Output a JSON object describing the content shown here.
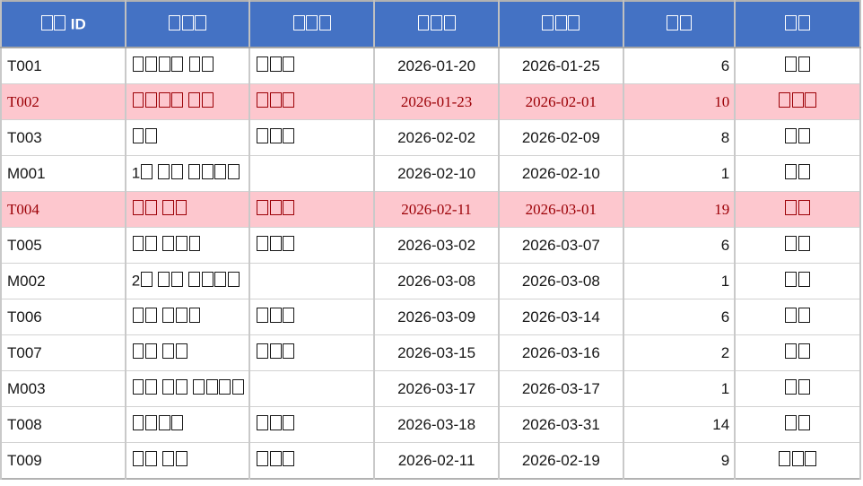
{
  "colors": {
    "header_bg": "#4472C4",
    "header_text": "#FFFFFF",
    "body_text": "#161616",
    "highlight_bg": "#FFC7CE",
    "highlight_text": "#9C0006",
    "gridline": "#C9C9C9",
    "outer_border": "#B2B2B2"
  },
  "table": {
    "columns": [
      "□□ ID",
      "□□□",
      "□□□",
      "□□□",
      "□□□",
      "□□",
      "□□"
    ],
    "rows": [
      {
        "highlight": false,
        "cells": [
          "T001",
          "□□□□ □□",
          "□□□",
          "2026-01-20",
          "2026-01-25",
          "6",
          "□□"
        ]
      },
      {
        "highlight": true,
        "cells": [
          "T002",
          "□□□□ □□",
          "□□□",
          "2026-01-23",
          "2026-02-01",
          "10",
          "□□□"
        ]
      },
      {
        "highlight": false,
        "cells": [
          "T003",
          "□□",
          "□□□",
          "2026-02-02",
          "2026-02-09",
          "8",
          "□□"
        ]
      },
      {
        "highlight": false,
        "cells": [
          "M001",
          "1□ □□ □□□□",
          "",
          "2026-02-10",
          "2026-02-10",
          "1",
          "□□"
        ]
      },
      {
        "highlight": true,
        "cells": [
          "T004",
          "□□ □□",
          "□□□",
          "2026-02-11",
          "2026-03-01",
          "19",
          "□□"
        ]
      },
      {
        "highlight": false,
        "cells": [
          "T005",
          "□□ □□□",
          "□□□",
          "2026-03-02",
          "2026-03-07",
          "6",
          "□□"
        ]
      },
      {
        "highlight": false,
        "cells": [
          "M002",
          "2□ □□ □□□□",
          "",
          "2026-03-08",
          "2026-03-08",
          "1",
          "□□"
        ]
      },
      {
        "highlight": false,
        "cells": [
          "T006",
          "□□ □□□",
          "□□□",
          "2026-03-09",
          "2026-03-14",
          "6",
          "□□"
        ]
      },
      {
        "highlight": false,
        "cells": [
          "T007",
          "□□ □□",
          "□□□",
          "2026-03-15",
          "2026-03-16",
          "2",
          "□□"
        ]
      },
      {
        "highlight": false,
        "cells": [
          "M003",
          "□□ □□ □□□□",
          "",
          "2026-03-17",
          "2026-03-17",
          "1",
          "□□"
        ]
      },
      {
        "highlight": false,
        "cells": [
          "T008",
          "□□□□",
          "□□□",
          "2026-03-18",
          "2026-03-31",
          "14",
          "□□"
        ]
      },
      {
        "highlight": false,
        "cells": [
          "T009",
          "□□ □□",
          "□□□",
          "2026-02-11",
          "2026-02-19",
          "9",
          "□□□"
        ]
      }
    ]
  }
}
